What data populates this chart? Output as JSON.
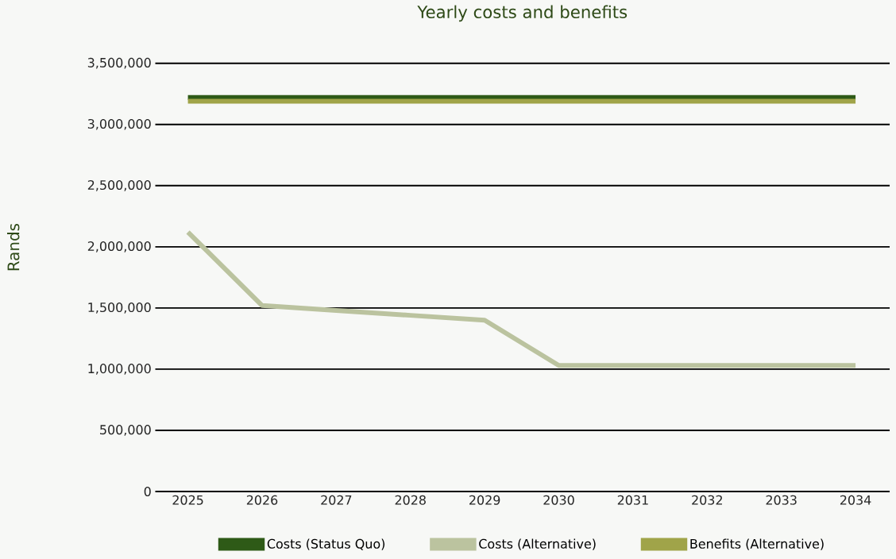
{
  "chart_data": {
    "type": "line",
    "title": "Yearly costs and benefits",
    "ylabel": "Rands",
    "categories": [
      "2025",
      "2026",
      "2027",
      "2028",
      "2029",
      "2030",
      "2031",
      "2032",
      "2033",
      "2034"
    ],
    "series": [
      {
        "name": "Costs (Status Quo)",
        "color": "#2e5a17",
        "values": [
          3220000,
          3220000,
          3220000,
          3220000,
          3220000,
          3220000,
          3220000,
          3220000,
          3220000,
          3220000
        ]
      },
      {
        "name": "Costs (Alternative)",
        "color": "#bbc39f",
        "values": [
          2120000,
          1520000,
          1480000,
          1440000,
          1400000,
          1030000,
          1030000,
          1030000,
          1030000,
          1030000
        ]
      },
      {
        "name": "Benefits (Alternative)",
        "color": "#a0a449",
        "values": [
          3190000,
          3190000,
          3190000,
          3190000,
          3190000,
          3190000,
          3190000,
          3190000,
          3190000,
          3190000
        ]
      }
    ],
    "ylim": [
      0,
      3500000
    ],
    "yticks": [
      {
        "value": 0,
        "label": "0"
      },
      {
        "value": 500000,
        "label": "500,000"
      },
      {
        "value": 1000000,
        "label": "1,000,000"
      },
      {
        "value": 1500000,
        "label": "1,500,000"
      },
      {
        "value": 2000000,
        "label": "2,000,000"
      },
      {
        "value": 2500000,
        "label": "2,500,000"
      },
      {
        "value": 3000000,
        "label": "3,000,000"
      },
      {
        "value": 3500000,
        "label": "3,500,000"
      }
    ],
    "grid": "y",
    "legend": "bottom"
  }
}
